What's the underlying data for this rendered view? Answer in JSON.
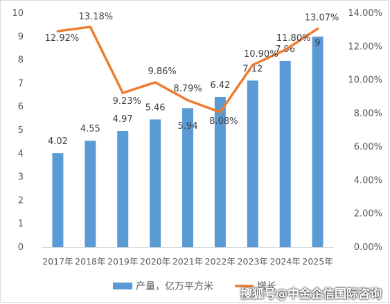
{
  "chart_data": {
    "type": "bar",
    "categories": [
      "2017年",
      "2018年",
      "2019年",
      "2020年",
      "2021年",
      "2022年",
      "2023年",
      "2024年",
      "2025年"
    ],
    "series": [
      {
        "name": "产量，亿万平方米",
        "type": "bar",
        "axis": "left",
        "values": [
          4.02,
          4.55,
          4.97,
          5.46,
          5.94,
          6.42,
          7.12,
          7.96,
          9
        ],
        "labels": [
          "4.02",
          "4.55",
          "4.97",
          "5.46",
          "5.94",
          "6.42",
          "7.12",
          "7.96",
          "9"
        ],
        "color": "#5b9bd5"
      },
      {
        "name": "增长",
        "type": "line",
        "axis": "right",
        "values": [
          0.1292,
          0.1318,
          0.0923,
          0.0986,
          0.0879,
          0.0808,
          0.109,
          0.118,
          0.1307
        ],
        "labels": [
          "12.92%",
          "13.18%",
          "9.23%",
          "9.86%",
          "8.79%",
          "8.08%",
          "10.90%",
          "11.80%",
          "13.07%"
        ],
        "color": "#ed7d31"
      }
    ],
    "y_left": {
      "ylim": [
        0,
        10
      ],
      "ticks": [
        "0",
        "1",
        "2",
        "3",
        "4",
        "5",
        "6",
        "7",
        "8",
        "9",
        "10"
      ]
    },
    "y_right": {
      "ylim": [
        0,
        0.14
      ],
      "ticks": [
        "0.00%",
        "2.00%",
        "4.00%",
        "6.00%",
        "8.00%",
        "10.00%",
        "12.00%",
        "14.00%"
      ]
    },
    "grid": false,
    "legend": "bottom-center"
  },
  "watermark": "搜狐号@中金企信国际咨询"
}
